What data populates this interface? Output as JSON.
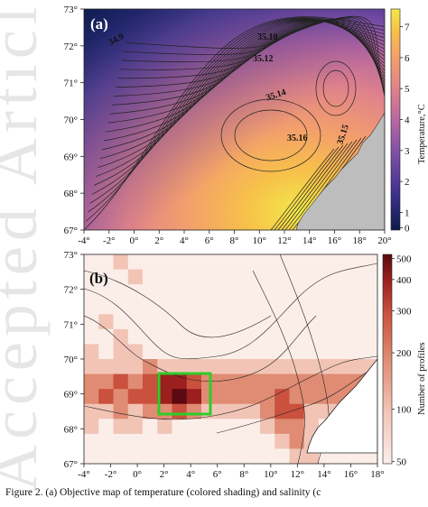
{
  "figure": {
    "watermark": "Accepted Article",
    "caption": "Figure 2. (a) Objective map of temperature (colored shading) and salinity (c"
  },
  "panel_a": {
    "label": "(a)",
    "contour_labels": [
      "34.9",
      "35.10",
      "35.12",
      "35.14",
      "35.16",
      "35.15"
    ],
    "colorbar_label": "Temperature,°C",
    "colorbar_ticks": [
      "7",
      "6",
      "5",
      "4",
      "3",
      "2",
      "1",
      "0"
    ],
    "colormap": [
      "#0b1a4a",
      "#3a2f8c",
      "#7f4fa7",
      "#b9689f",
      "#e1838a",
      "#f39f6c",
      "#f7c04a",
      "#f3e94a"
    ]
  },
  "panel_b": {
    "label": "(b)",
    "colorbar_label": "Number of profiles",
    "colorbar_ticks": [
      "500",
      "400",
      "300",
      "200",
      "100",
      "50"
    ],
    "box_color": "#2ecc27",
    "colormap": [
      "#fbeee9",
      "#f2c4b6",
      "#e08b73",
      "#c9513d",
      "#9b1f1f",
      "#5a0a10"
    ]
  },
  "axes": {
    "y_ticks": [
      "73°",
      "72°",
      "71°",
      "70°",
      "69°",
      "68°",
      "67°"
    ],
    "x_ticks": [
      "-4°",
      "-2°",
      "0°",
      "2°",
      "4°",
      "6°",
      "8°",
      "10°",
      "12°",
      "14°",
      "16°",
      "18°",
      "20°"
    ],
    "x_ticks_b": [
      "-4°",
      "-2°",
      "0°",
      "2°",
      "4°",
      "6°",
      "8°",
      "10°",
      "12°",
      "14°",
      "16°",
      "18°"
    ]
  },
  "colors": {
    "land": "#bdbdbd",
    "contour": "#222222"
  }
}
